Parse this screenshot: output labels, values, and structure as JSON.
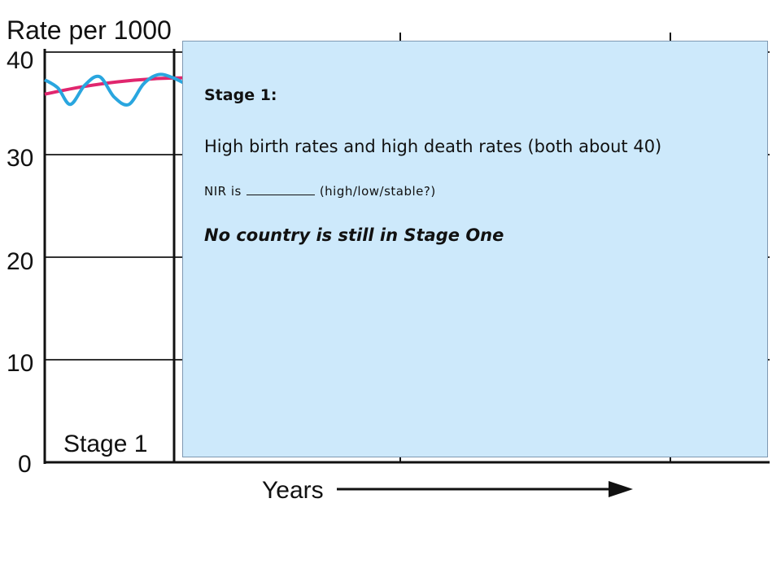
{
  "chart_data": {
    "type": "line",
    "ylabel": "Rate per 1000",
    "xlabel": "Years",
    "ylim": [
      0,
      40
    ],
    "yticks": [
      "0",
      "10",
      "20",
      "30",
      "40"
    ],
    "stage_label": "Stage 1",
    "series": [
      {
        "color": "#e0266e",
        "points": [
          [
            0,
            35.9
          ],
          [
            0.5,
            36.6
          ],
          [
            1,
            37.1
          ],
          [
            1.5,
            37.4
          ],
          [
            2,
            37.5
          ]
        ]
      },
      {
        "color": "#29a6df",
        "points": [
          [
            0,
            37.3
          ],
          [
            0.18,
            36.5
          ],
          [
            0.35,
            34.9
          ],
          [
            0.55,
            36.8
          ],
          [
            0.75,
            37.6
          ],
          [
            0.95,
            35.6
          ],
          [
            1.15,
            34.9
          ],
          [
            1.35,
            36.9
          ],
          [
            1.55,
            37.8
          ],
          [
            1.75,
            37.5
          ],
          [
            2,
            36.6
          ]
        ]
      }
    ],
    "colors": {
      "axis": "#111111",
      "grid": "#333333"
    }
  },
  "note": {
    "stage_title": "Stage 1:",
    "description": "High birth rates and high death rates (both about 40)",
    "nir_prefix": "NIR is",
    "nir_suffix": "(high/low/stable?)",
    "fact": "No country is still in Stage One"
  }
}
